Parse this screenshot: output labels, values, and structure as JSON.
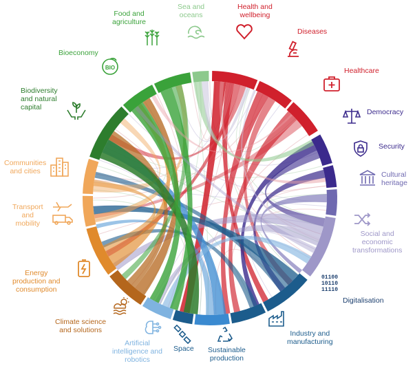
{
  "colors": {
    "health": "#d0202c",
    "governance": "#3b2a8c",
    "social": "#9e97c8",
    "digital": "#1c5c8c",
    "industry": "#1c5c8c",
    "sustainable": "#3a8ad0",
    "ai": "#7fb3e0",
    "climate": "#b4661c",
    "energy": "#e08a2c",
    "urban": "#f0a75a",
    "green": "#3aa23a",
    "darkgreen": "#2d7d2d",
    "ocean": "#8cc98c"
  },
  "themes": [
    {
      "label": "Health and\nwellbeing",
      "color": "#d0202c",
      "icon": "heart-icon"
    },
    {
      "label": "Diseases",
      "color": "#d0202c",
      "icon": "microscope-icon"
    },
    {
      "label": "Healthcare",
      "color": "#d0202c",
      "icon": "first-aid-kit-icon"
    },
    {
      "label": "Democracy",
      "color": "#3b2a8c",
      "icon": "scales-icon"
    },
    {
      "label": "Security",
      "color": "#3b2a8c",
      "icon": "shield-lock-icon"
    },
    {
      "label": "Cultural\nheritage",
      "color": "#6f69b0",
      "icon": "columns-icon"
    },
    {
      "label": "Social and\neconomic\ntransformations",
      "color": "#9e97c8",
      "icon": "shuffle-arrows-icon"
    },
    {
      "label": "Digitalisation",
      "color": "#1c3f6e",
      "icon": "binary-code-icon"
    },
    {
      "label": "Industry and\nmanufacturing",
      "color": "#1c5c8c",
      "icon": "factory-icon"
    },
    {
      "label": "Sustainable\nproduction",
      "color": "#1c5c8c",
      "icon": "recycle-icon"
    },
    {
      "label": "Space",
      "color": "#1c5c8c",
      "icon": "satellite-icon"
    },
    {
      "label": "Artificial\nintelligence and\nrobotics",
      "color": "#7fb3e0",
      "icon": "circuit-brain-icon"
    },
    {
      "label": "Climate science\nand solutions",
      "color": "#b4661c",
      "icon": "weather-icon"
    },
    {
      "label": "Energy\nproduction and\nconsumption",
      "color": "#e08a2c",
      "icon": "battery-icon"
    },
    {
      "label": "Transport\nand\nmobility",
      "color": "#f0a75a",
      "icon": "plane-truck-icon"
    },
    {
      "label": "Communities\nand cities",
      "color": "#f0a75a",
      "icon": "city-icon"
    },
    {
      "label": "Biodiversity\nand natural\ncapital",
      "color": "#2d7d2d",
      "icon": "hands-plant-icon"
    },
    {
      "label": "Bioeconomy",
      "color": "#3aa23a",
      "icon": "bio-leaf-icon"
    },
    {
      "label": "Food and\nagriculture",
      "color": "#3aa23a",
      "icon": "wheat-icon"
    },
    {
      "label": "Sea and\noceans",
      "color": "#8cc98c",
      "icon": "wave-icon"
    }
  ]
}
